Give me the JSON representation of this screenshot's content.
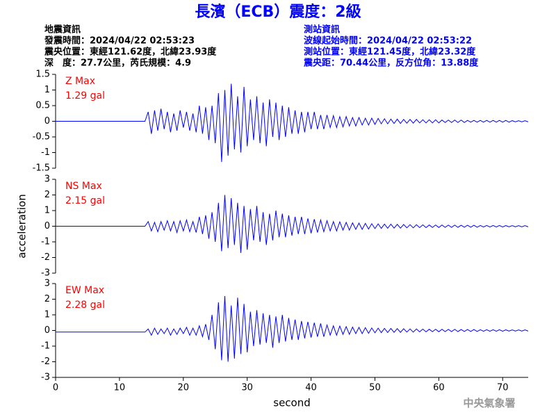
{
  "header": {
    "title": "長濱（ECB）震度：2級",
    "left": [
      "地震資訊",
      "發震時間：2024/04/22 02:53:23",
      "震央位置：東經121.62度，北緯23.93度",
      "深　度：27.7公里，芮氏規模：4.9"
    ],
    "right": [
      "測站資訊",
      "波線起始時間：2024/04/22 02:53:22",
      "測站位置：東經121.45度，北緯23.32度",
      "震央距：70.44公里，反方位角：13.88度"
    ]
  },
  "footer": "中央氣象署",
  "chart_data": [
    {
      "type": "line",
      "color": "#0000ff",
      "annotation": [
        "Z Max",
        "1.29 gal"
      ],
      "xlim": [
        0,
        74
      ],
      "ylim": [
        -1.5,
        1.5
      ],
      "yticks": [
        -1.5,
        -1,
        -0.5,
        0,
        0.5,
        1,
        1.5
      ],
      "x": [
        0,
        14,
        14.5,
        15,
        15.5,
        16,
        16.5,
        17,
        17.5,
        18,
        18.5,
        19,
        19.5,
        20,
        20.5,
        21,
        21.5,
        22,
        22.5,
        23,
        23.5,
        24,
        24.5,
        25,
        25.5,
        26,
        26.5,
        27,
        27.5,
        28,
        28.5,
        29,
        29.5,
        30,
        30.5,
        31,
        31.5,
        32,
        32.5,
        33,
        33.5,
        34,
        34.5,
        35,
        35.5,
        36,
        36.5,
        37,
        37.5,
        38,
        38.5,
        39,
        39.5,
        40,
        40.5,
        41,
        41.5,
        42,
        42.5,
        43,
        43.5,
        44,
        44.5,
        45,
        45.5,
        46,
        46.5,
        47,
        47.5,
        48,
        48.5,
        49,
        49.5,
        50,
        50.5,
        51,
        51.5,
        52,
        52.5,
        53,
        53.5,
        54,
        54.5,
        55,
        55.5,
        56,
        56.5,
        57,
        57.5,
        58,
        58.5,
        59,
        59.5,
        60,
        60.5,
        61,
        61.5,
        62,
        62.5,
        63,
        63.5,
        64,
        64.5,
        65,
        65.5,
        66,
        66.5,
        67,
        67.5,
        68,
        68.5,
        69,
        69.5,
        70,
        70.5,
        71,
        71.5,
        72,
        72.5,
        73,
        73.5,
        74
      ],
      "values": [
        0,
        0,
        0.3,
        -0.4,
        0.35,
        -0.3,
        0.4,
        -0.25,
        0.3,
        -0.35,
        0.25,
        -0.3,
        0.35,
        -0.2,
        0.3,
        -0.3,
        0.25,
        -0.35,
        0.5,
        -0.4,
        0.45,
        -0.6,
        0.5,
        -0.7,
        0.9,
        -1.3,
        1.0,
        -1.1,
        1.2,
        -0.9,
        0.8,
        -1.0,
        1.1,
        -0.8,
        0.7,
        -0.6,
        0.8,
        -0.7,
        0.6,
        -0.8,
        0.7,
        -0.5,
        0.6,
        -0.6,
        0.5,
        -0.5,
        0.45,
        -0.4,
        0.35,
        -0.4,
        0.3,
        -0.35,
        0.3,
        -0.25,
        0.3,
        -0.25,
        0.2,
        -0.25,
        0.2,
        -0.2,
        0.18,
        -0.2,
        0.15,
        -0.18,
        0.15,
        -0.15,
        0.12,
        -0.15,
        0.12,
        -0.12,
        0.1,
        -0.12,
        0.1,
        -0.1,
        0.09,
        -0.08,
        0.08,
        -0.08,
        0.07,
        -0.07,
        0.07,
        -0.07,
        0.06,
        -0.06,
        0.06,
        -0.06,
        0.06,
        -0.05,
        0.05,
        -0.05,
        0.05,
        -0.05,
        0.05,
        -0.05,
        0.04,
        -0.04,
        0.04,
        -0.04,
        0.04,
        -0.04,
        0.04,
        -0.04,
        0.03,
        -0.03,
        0.03,
        -0.03,
        0.03,
        -0.03,
        0.03,
        -0.03,
        0.03,
        -0.03,
        0.03,
        -0.03,
        0.03,
        -0.03,
        0.02,
        -0.02,
        0.02,
        -0.02,
        0.02,
        -0.02
      ]
    },
    {
      "type": "line",
      "color": "#0000ff",
      "annotation": [
        "NS Max",
        "2.15 gal"
      ],
      "ylabel": "acceleration",
      "xlim": [
        0,
        74
      ],
      "ylim": [
        -3,
        3
      ],
      "yticks": [
        -3,
        -2,
        -1,
        0,
        1,
        2,
        3
      ],
      "x": [
        0,
        14,
        14.5,
        15,
        15.5,
        16,
        16.5,
        17,
        17.5,
        18,
        18.5,
        19,
        19.5,
        20,
        20.5,
        21,
        21.5,
        22,
        22.5,
        23,
        23.5,
        24,
        24.5,
        25,
        25.5,
        26,
        26.5,
        27,
        27.5,
        28,
        28.5,
        29,
        29.5,
        30,
        30.5,
        31,
        31.5,
        32,
        32.5,
        33,
        33.5,
        34,
        34.5,
        35,
        35.5,
        36,
        36.5,
        37,
        37.5,
        38,
        38.5,
        39,
        39.5,
        40,
        40.5,
        41,
        41.5,
        42,
        42.5,
        43,
        43.5,
        44,
        44.5,
        45,
        45.5,
        46,
        46.5,
        47,
        47.5,
        48,
        48.5,
        49,
        49.5,
        50,
        50.5,
        51,
        51.5,
        52,
        52.5,
        53,
        53.5,
        54,
        54.5,
        55,
        55.5,
        56,
        56.5,
        57,
        57.5,
        58,
        58.5,
        59,
        59.5,
        60,
        60.5,
        61,
        61.5,
        62,
        62.5,
        63,
        63.5,
        64,
        64.5,
        65,
        65.5,
        66,
        66.5,
        67,
        67.5,
        68,
        68.5,
        69,
        69.5,
        70,
        70.5,
        71,
        71.5,
        72,
        72.5,
        73,
        73.5,
        74
      ],
      "values": [
        0,
        0,
        0.3,
        -0.3,
        0.25,
        -0.35,
        0.3,
        -0.25,
        0.35,
        -0.3,
        0.3,
        -0.4,
        0.35,
        -0.3,
        0.4,
        -0.35,
        0.3,
        -0.4,
        0.6,
        -0.5,
        0.7,
        -0.8,
        0.9,
        -1.0,
        1.5,
        -1.6,
        2.0,
        -1.4,
        1.8,
        -1.2,
        1.5,
        -1.7,
        1.3,
        -1.5,
        1.1,
        -0.9,
        1.3,
        -1.0,
        0.9,
        -1.2,
        0.8,
        -0.9,
        1.0,
        -0.7,
        0.8,
        -0.7,
        0.7,
        -0.6,
        0.6,
        -0.5,
        0.6,
        -0.5,
        0.5,
        -0.45,
        0.45,
        -0.4,
        0.4,
        -0.35,
        0.35,
        -0.3,
        0.3,
        -0.3,
        0.28,
        -0.25,
        0.25,
        -0.25,
        0.22,
        -0.2,
        0.2,
        -0.2,
        0.18,
        -0.18,
        0.16,
        -0.15,
        0.15,
        -0.14,
        0.14,
        -0.13,
        0.13,
        -0.12,
        0.12,
        -0.12,
        0.11,
        -0.1,
        0.1,
        -0.1,
        0.1,
        -0.09,
        0.09,
        -0.09,
        0.08,
        -0.08,
        0.08,
        -0.08,
        0.08,
        -0.07,
        0.07,
        -0.07,
        0.07,
        -0.07,
        0.06,
        -0.06,
        0.06,
        -0.06,
        0.06,
        -0.06,
        0.05,
        -0.05,
        0.05,
        -0.05,
        0.05,
        -0.05,
        0.05,
        -0.05,
        0.04,
        -0.04,
        0.04,
        -0.04,
        0.04,
        -0.04,
        0.04,
        -0.04
      ]
    },
    {
      "type": "line",
      "color": "#0000ff",
      "annotation": [
        "EW Max",
        "2.28 gal"
      ],
      "xlabel": "second",
      "xlim": [
        0,
        74
      ],
      "xticks": [
        0,
        10,
        20,
        30,
        40,
        50,
        60,
        70
      ],
      "ylim": [
        -3,
        3
      ],
      "yticks": [
        -3,
        -2,
        -1,
        0,
        1,
        2,
        3
      ],
      "x": [
        0,
        14,
        14.5,
        15,
        15.5,
        16,
        16.5,
        17,
        17.5,
        18,
        18.5,
        19,
        19.5,
        20,
        20.5,
        21,
        21.5,
        22,
        22.5,
        23,
        23.5,
        24,
        24.5,
        25,
        25.5,
        26,
        26.5,
        27,
        27.5,
        28,
        28.5,
        29,
        29.5,
        30,
        30.5,
        31,
        31.5,
        32,
        32.5,
        33,
        33.5,
        34,
        34.5,
        35,
        35.5,
        36,
        36.5,
        37,
        37.5,
        38,
        38.5,
        39,
        39.5,
        40,
        40.5,
        41,
        41.5,
        42,
        42.5,
        43,
        43.5,
        44,
        44.5,
        45,
        45.5,
        46,
        46.5,
        47,
        47.5,
        48,
        48.5,
        49,
        49.5,
        50,
        50.5,
        51,
        51.5,
        52,
        52.5,
        53,
        53.5,
        54,
        54.5,
        55,
        55.5,
        56,
        56.5,
        57,
        57.5,
        58,
        58.5,
        59,
        59.5,
        60,
        60.5,
        61,
        61.5,
        62,
        62.5,
        63,
        63.5,
        64,
        64.5,
        65,
        65.5,
        66,
        66.5,
        67,
        67.5,
        68,
        68.5,
        69,
        69.5,
        70,
        70.5,
        71,
        71.5,
        72,
        72.5,
        73,
        73.5,
        74
      ],
      "values": [
        -0.1,
        -0.1,
        0.1,
        -0.3,
        0.15,
        -0.25,
        0.1,
        -0.2,
        0.15,
        -0.3,
        0.1,
        -0.25,
        0.15,
        -0.2,
        0.2,
        -0.3,
        0.15,
        -0.3,
        0.3,
        -0.4,
        0.4,
        -0.6,
        1.0,
        -1.2,
        1.8,
        -1.9,
        2.2,
        -2.0,
        1.6,
        -1.8,
        2.1,
        -1.5,
        1.7,
        -1.4,
        1.2,
        -1.0,
        1.3,
        -0.9,
        1.1,
        -0.8,
        1.0,
        -1.1,
        0.9,
        -0.8,
        1.0,
        -0.7,
        0.8,
        -0.6,
        0.7,
        -0.6,
        0.6,
        -0.5,
        0.55,
        -0.45,
        0.5,
        -0.4,
        0.45,
        -0.4,
        0.35,
        -0.3,
        0.3,
        -0.3,
        0.28,
        -0.25,
        0.25,
        -0.25,
        0.22,
        -0.2,
        0.2,
        -0.2,
        0.18,
        -0.18,
        0.16,
        -0.15,
        0.15,
        -0.14,
        0.14,
        -0.13,
        0.13,
        -0.12,
        0.12,
        -0.12,
        0.11,
        -0.1,
        0.1,
        -0.1,
        0.1,
        -0.09,
        0.09,
        -0.09,
        0.08,
        -0.08,
        0.08,
        -0.08,
        0.08,
        -0.07,
        0.07,
        -0.07,
        0.07,
        -0.07,
        0.06,
        -0.06,
        0.06,
        -0.06,
        0.06,
        -0.06,
        0.05,
        -0.05,
        0.05,
        -0.05,
        0.05,
        -0.05,
        0.05,
        -0.05,
        0.04,
        -0.04,
        0.04,
        -0.04,
        0.04,
        -0.04,
        0.04,
        -0.04
      ]
    }
  ]
}
